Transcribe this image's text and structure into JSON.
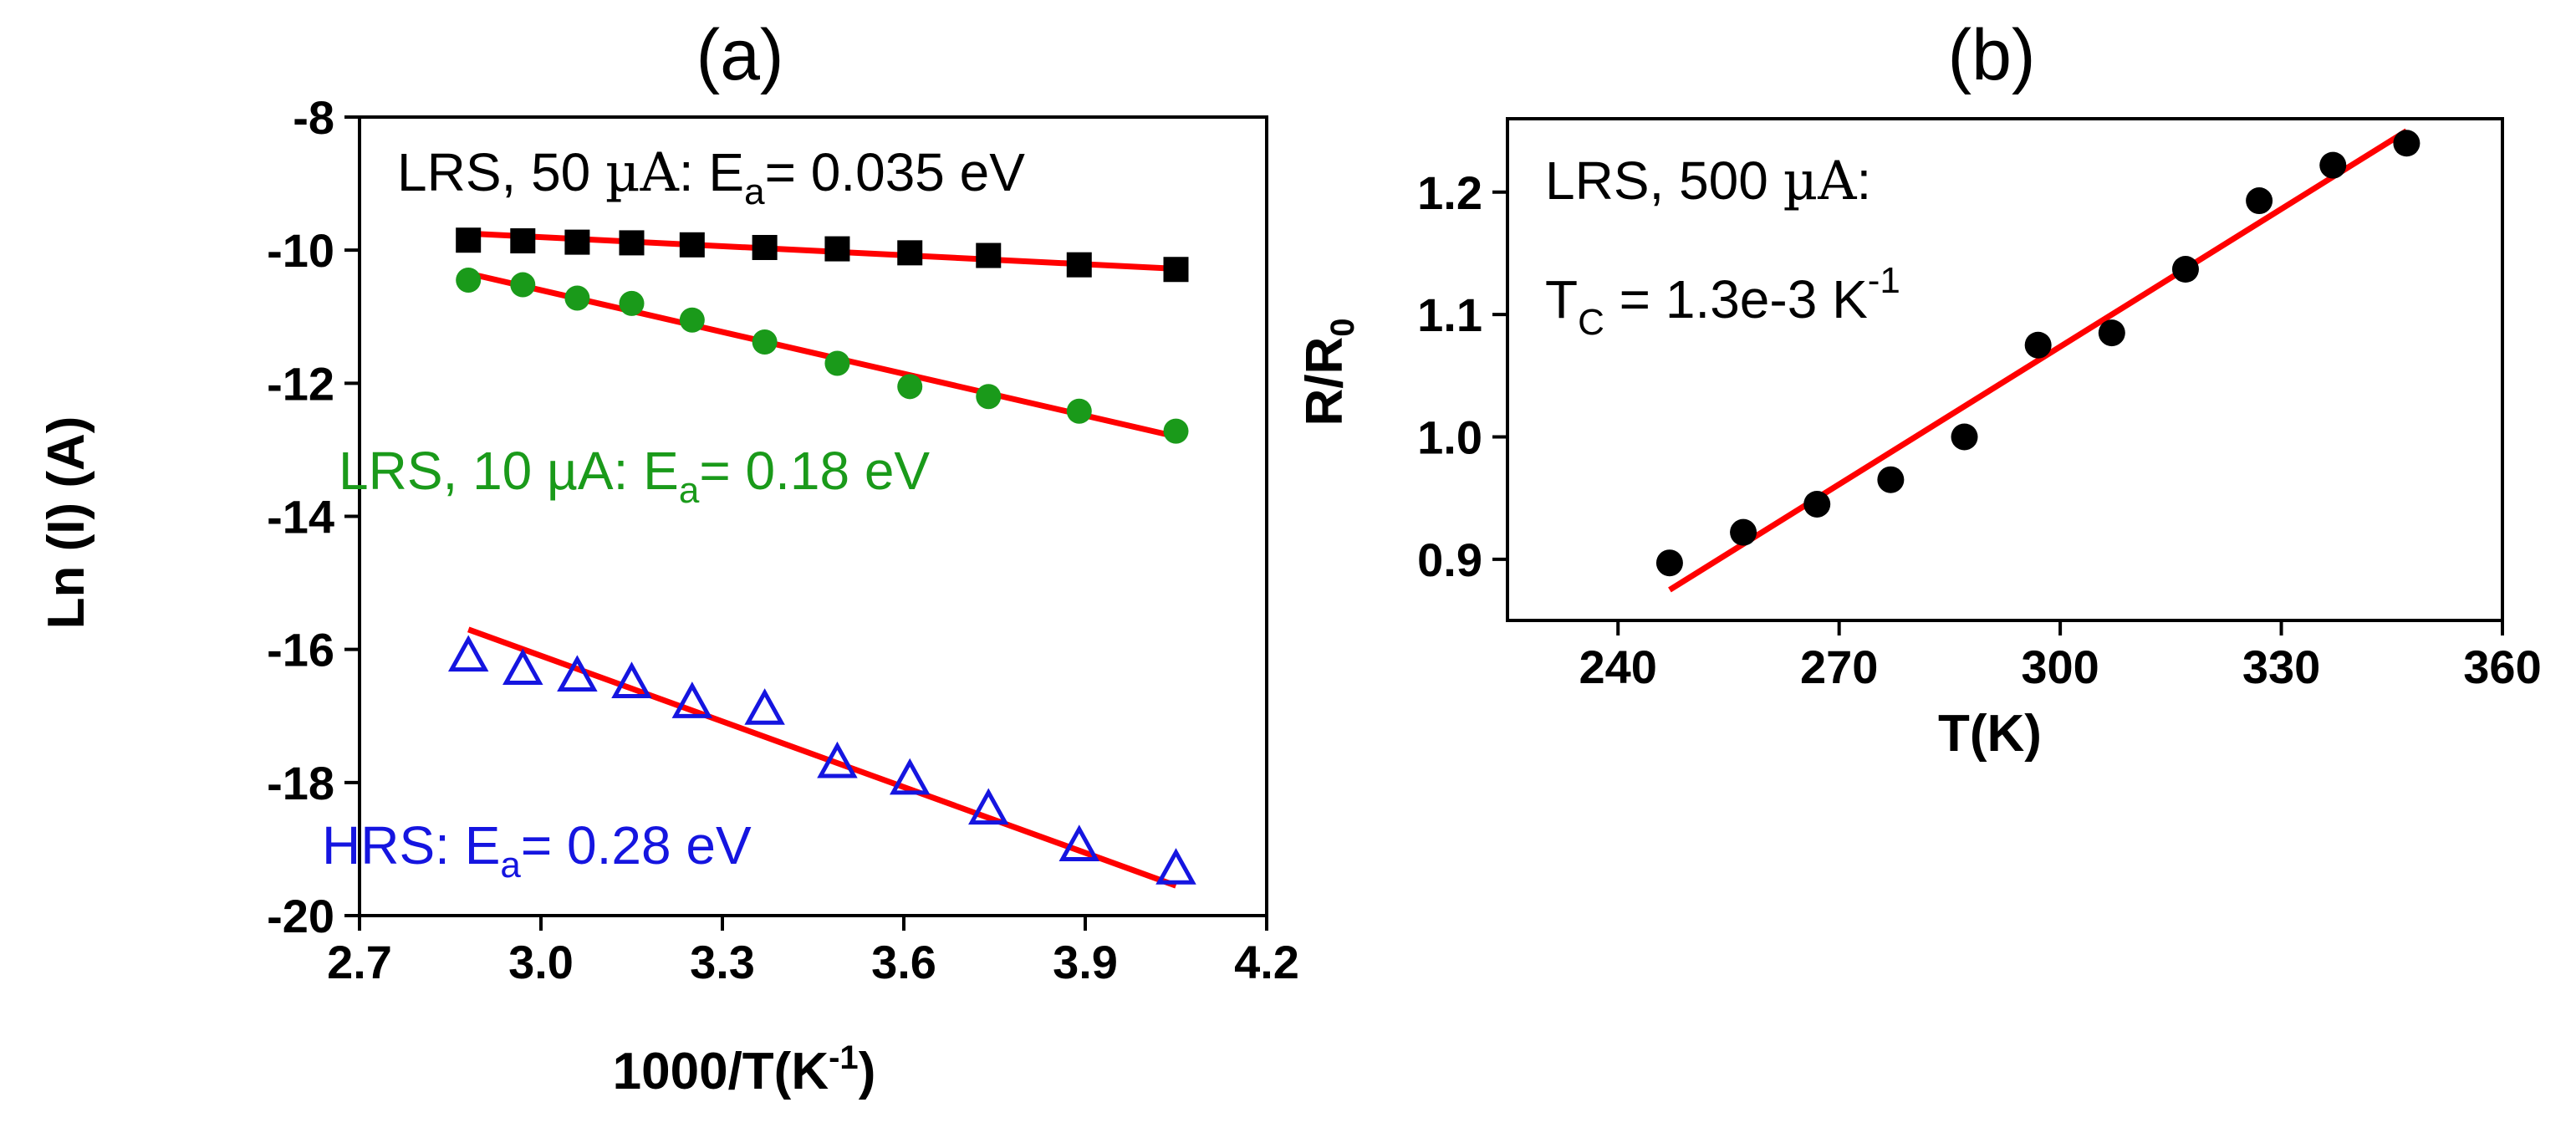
{
  "chart_data": [
    {
      "panel": "(a)",
      "type": "scatter",
      "xlabel": "1000/T(K",
      "xlabel_sup": "-1",
      "xlabel_end": ")",
      "ylabel": "Ln (I) (A)",
      "xlim": [
        2.7,
        4.2
      ],
      "ylim": [
        -20,
        -8
      ],
      "xticks": [
        "2.7",
        "3.0",
        "3.3",
        "3.6",
        "3.9",
        "4.2"
      ],
      "yticks": [
        "-8",
        "-10",
        "-12",
        "-14",
        "-16",
        "-18",
        "-20"
      ],
      "series": [
        {
          "name": "LRS, 50 µA",
          "color": "#000000",
          "marker": "square",
          "x": [
            2.88,
            2.97,
            3.06,
            3.15,
            3.25,
            3.37,
            3.49,
            3.61,
            3.74,
            3.89,
            4.05
          ],
          "y": [
            -9.85,
            -9.86,
            -9.88,
            -9.89,
            -9.92,
            -9.96,
            -9.98,
            -10.04,
            -10.08,
            -10.22,
            -10.29
          ],
          "fit": [
            [
              2.88,
              -9.75
            ],
            [
              4.05,
              -10.28
            ]
          ],
          "annotation": {
            "prefix": "LRS, 50 ",
            "unit": "µA",
            "mid": ": E",
            "sub": "a",
            "suffix": "= 0.035 eV"
          }
        },
        {
          "name": "LRS, 10 µA",
          "color": "#1a9a1a",
          "marker": "circle",
          "x": [
            2.88,
            2.97,
            3.06,
            3.15,
            3.25,
            3.37,
            3.49,
            3.61,
            3.74,
            3.89,
            4.05
          ],
          "y": [
            -10.45,
            -10.52,
            -10.72,
            -10.8,
            -11.05,
            -11.38,
            -11.7,
            -12.05,
            -12.2,
            -12.42,
            -12.72
          ],
          "fit": [
            [
              2.88,
              -10.35
            ],
            [
              4.05,
              -12.8
            ]
          ],
          "annotation": {
            "prefix": "LRS, 10 ",
            "unit": "µA",
            "mid": ": E",
            "sub": "a",
            "suffix": "= 0.18 eV"
          }
        },
        {
          "name": "HRS",
          "color": "#1515e0",
          "marker": "triangle-open",
          "x": [
            2.88,
            2.97,
            3.06,
            3.15,
            3.25,
            3.37,
            3.49,
            3.61,
            3.74,
            3.89,
            4.05
          ],
          "y": [
            -16.1,
            -16.3,
            -16.4,
            -16.5,
            -16.8,
            -16.9,
            -17.7,
            -17.95,
            -18.4,
            -18.95,
            -19.3
          ],
          "fit": [
            [
              2.88,
              -15.7
            ],
            [
              4.05,
              -19.55
            ]
          ],
          "annotation": {
            "prefix": "HRS",
            "unit": "",
            "mid": ": E",
            "sub": "a",
            "suffix": "= 0.28 eV"
          }
        }
      ]
    },
    {
      "panel": "(b)",
      "type": "scatter",
      "xlabel": "T(K)",
      "ylabel": "R/R",
      "ylabel_sub": "0",
      "xlim": [
        225,
        360
      ],
      "ylim": [
        0.85,
        1.26
      ],
      "xticks": [
        "240",
        "270",
        "300",
        "330",
        "360"
      ],
      "yticks": [
        "0.9",
        "1.0",
        "1.1",
        "1.2"
      ],
      "series": [
        {
          "name": "LRS, 500 µA",
          "color": "#000000",
          "marker": "circle",
          "x": [
            247,
            257,
            267,
            277,
            287,
            297,
            307,
            317,
            327,
            337,
            347
          ],
          "y": [
            0.897,
            0.922,
            0.945,
            0.965,
            1.0,
            1.075,
            1.085,
            1.137,
            1.193,
            1.222,
            1.24
          ],
          "fit": [
            [
              247,
              0.875
            ],
            [
              347,
              1.25
            ]
          ]
        }
      ],
      "annotation_line1": {
        "prefix": "LRS, 500 ",
        "unit": "µA",
        "suffix": ":"
      },
      "annotation_line2": {
        "prefix": "T",
        "sub": "C",
        "mid": " = 1.3e-3 K",
        "sup": "-1"
      }
    }
  ],
  "colors": {
    "fit_line": "#ff0000"
  }
}
